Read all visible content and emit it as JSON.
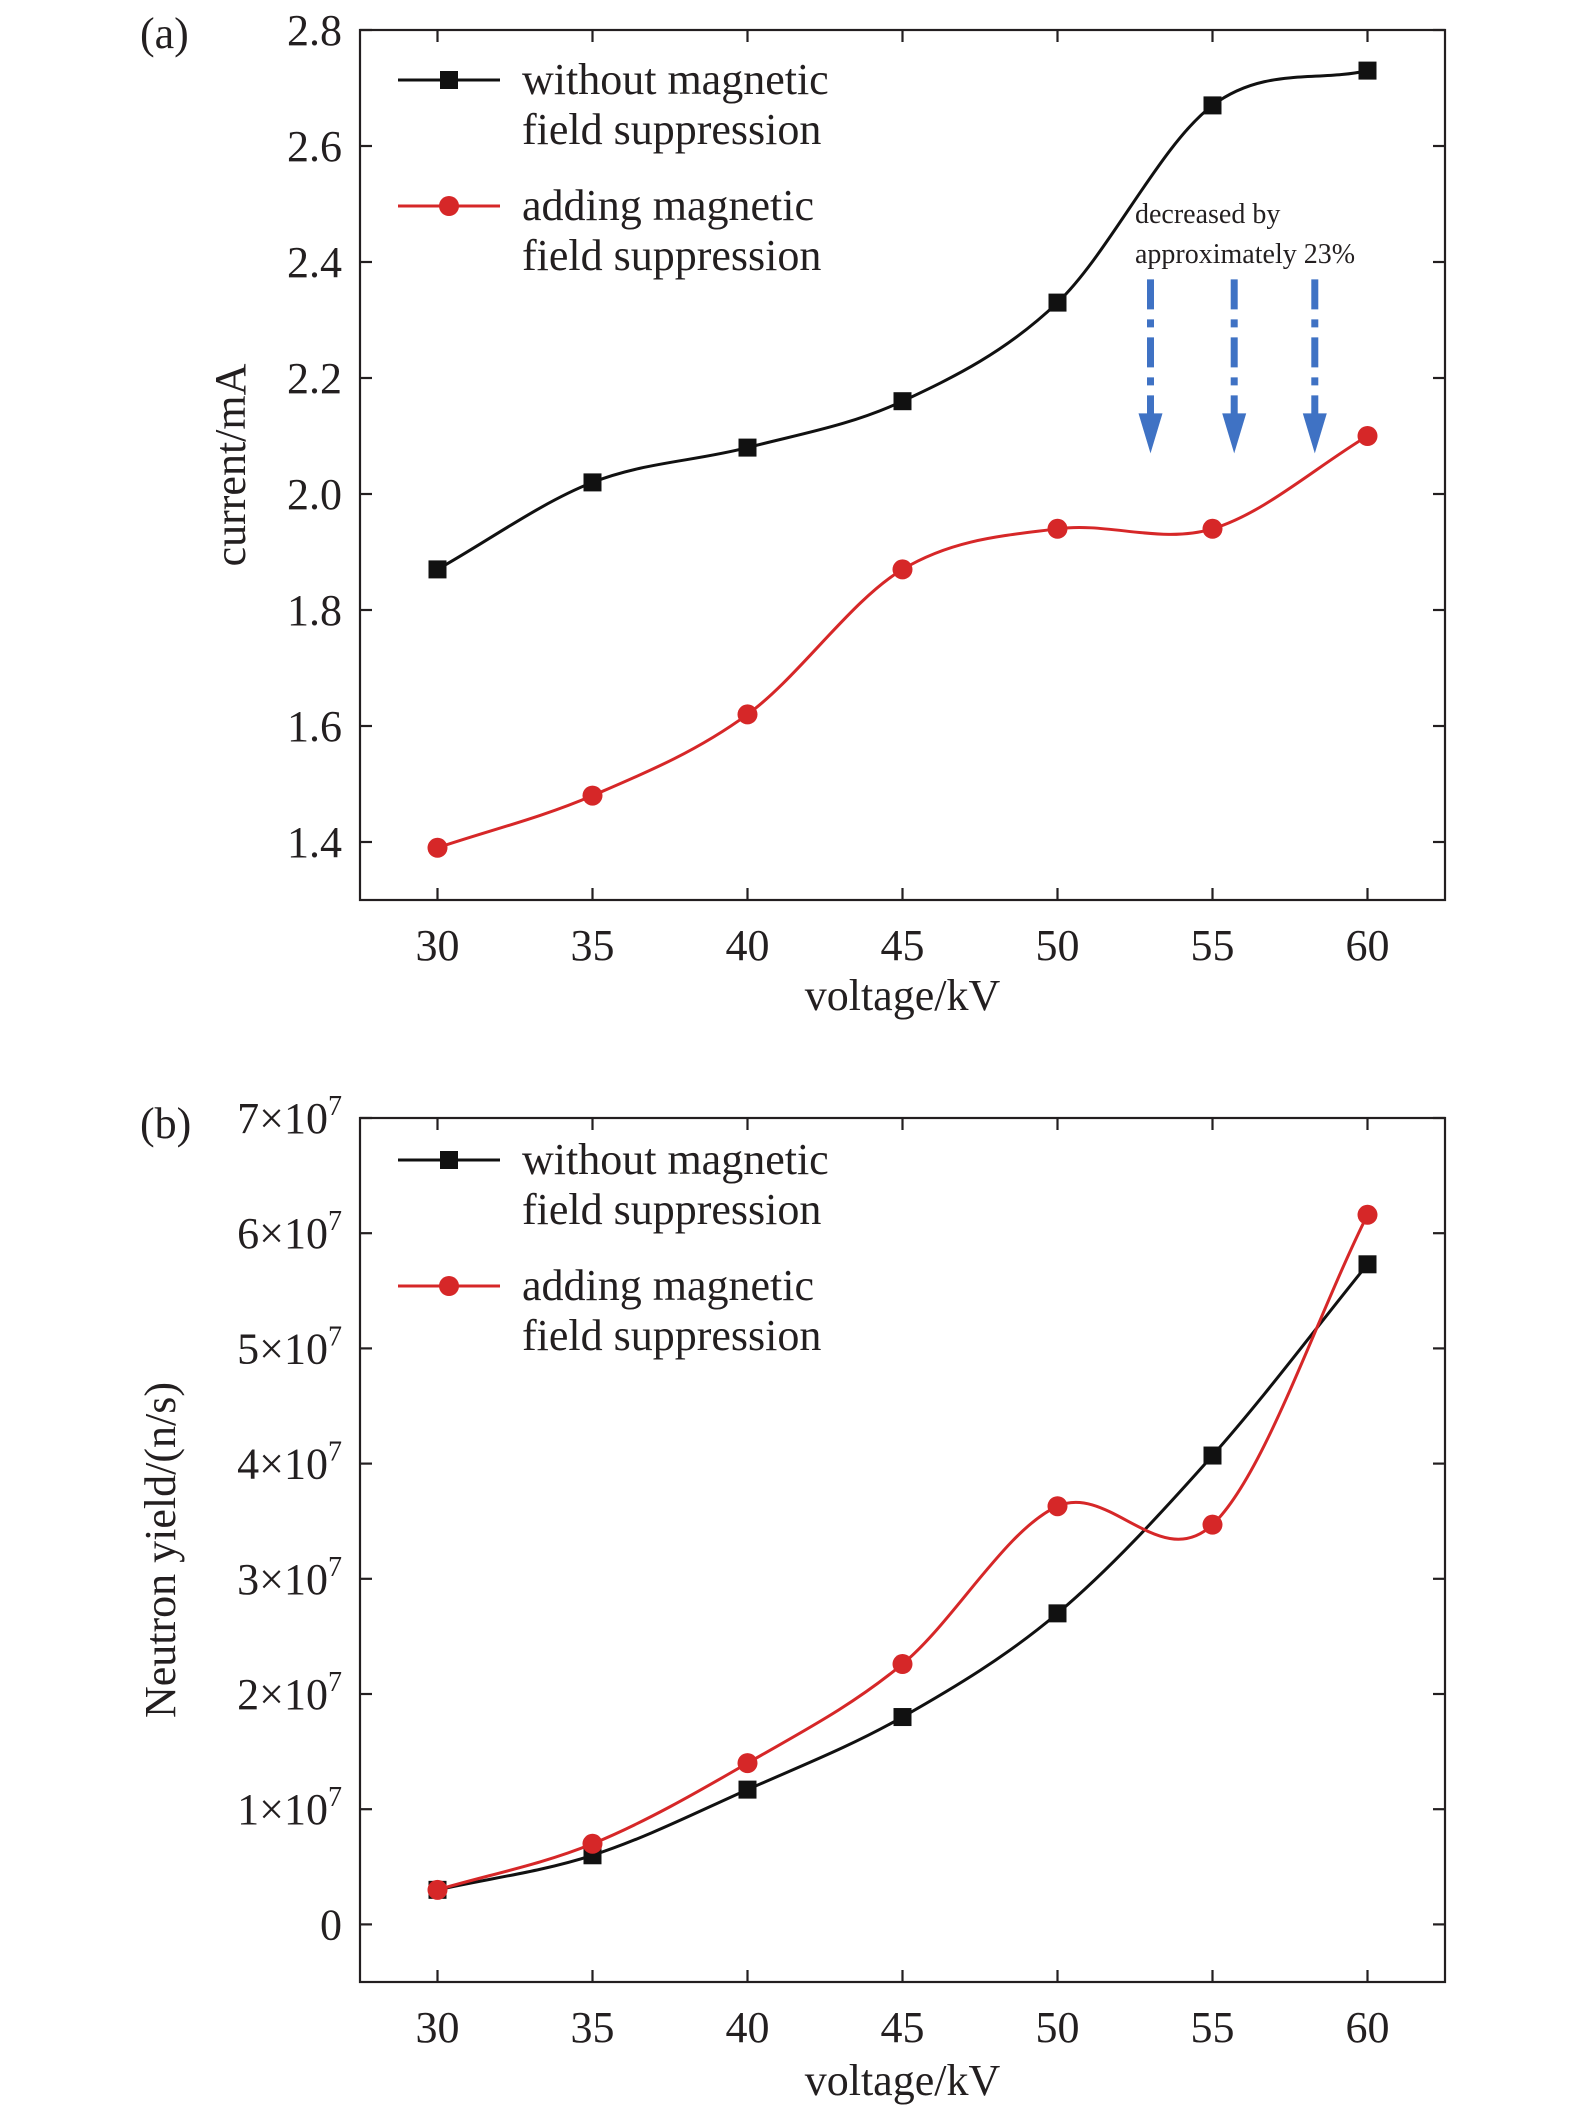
{
  "colors": {
    "series_black": "#111111",
    "series_red": "#d62728",
    "arrow_blue": "#3f72c4",
    "axis": "#231f20"
  },
  "chart_data": [
    {
      "panel_label": "(a)",
      "type": "line",
      "xlabel": "voltage/kV",
      "ylabel": "current/mA",
      "x_ticks": [
        "30",
        "35",
        "40",
        "45",
        "50",
        "55",
        "60"
      ],
      "y_ticks": [
        "1.4",
        "1.6",
        "1.8",
        "2.0",
        "2.2",
        "2.4",
        "2.6",
        "2.8"
      ],
      "xlim": [
        27.5,
        62.5
      ],
      "ylim": [
        1.3,
        2.8
      ],
      "grid": false,
      "legend_position": "top-left",
      "x": [
        30,
        35,
        40,
        45,
        50,
        55,
        60
      ],
      "series": [
        {
          "name": [
            "without magnetic",
            "field suppression"
          ],
          "marker": "square",
          "color": "#111111",
          "values": [
            1.87,
            2.02,
            2.08,
            2.16,
            2.33,
            2.67,
            2.73
          ]
        },
        {
          "name": [
            "adding magnetic",
            "field suppression"
          ],
          "marker": "circle",
          "color": "#d62728",
          "values": [
            1.39,
            1.48,
            1.62,
            1.87,
            1.94,
            1.94,
            2.1
          ]
        }
      ],
      "annotation": {
        "text": [
          "decreased by",
          "approximately 23%"
        ],
        "arrow_x": [
          53,
          55.7,
          58.3
        ],
        "arrow_from": 2.37,
        "arrow_to": 2.07
      }
    },
    {
      "panel_label": "(b)",
      "type": "line",
      "xlabel": "voltage/kV",
      "ylabel": "Neutron yield/(n/s)",
      "x_ticks": [
        "30",
        "35",
        "40",
        "45",
        "50",
        "55",
        "60"
      ],
      "y_ticks": [
        {
          "value": 0,
          "mantissa": "0",
          "exponent": ""
        },
        {
          "value": 10000000,
          "mantissa": "1×10",
          "exponent": "7"
        },
        {
          "value": 20000000,
          "mantissa": "2×10",
          "exponent": "7"
        },
        {
          "value": 30000000,
          "mantissa": "3×10",
          "exponent": "7"
        },
        {
          "value": 40000000,
          "mantissa": "4×10",
          "exponent": "7"
        },
        {
          "value": 50000000,
          "mantissa": "5×10",
          "exponent": "7"
        },
        {
          "value": 60000000,
          "mantissa": "6×10",
          "exponent": "7"
        },
        {
          "value": 70000000,
          "mantissa": "7×10",
          "exponent": "7"
        }
      ],
      "xlim": [
        27.5,
        62.5
      ],
      "ylim": [
        -5000000,
        70000000
      ],
      "grid": false,
      "legend_position": "top-left",
      "x": [
        30,
        35,
        40,
        45,
        50,
        55,
        60
      ],
      "series": [
        {
          "name": [
            "without magnetic",
            "field suppression"
          ],
          "marker": "square",
          "color": "#111111",
          "values": [
            3000000,
            6000000,
            11700000,
            18000000,
            27000000,
            40700000,
            57300000
          ]
        },
        {
          "name": [
            "adding magnetic",
            "field suppression"
          ],
          "marker": "circle",
          "color": "#d62728",
          "values": [
            3000000,
            7000000,
            14000000,
            22600000,
            36300000,
            34700000,
            61600000
          ]
        }
      ]
    }
  ]
}
